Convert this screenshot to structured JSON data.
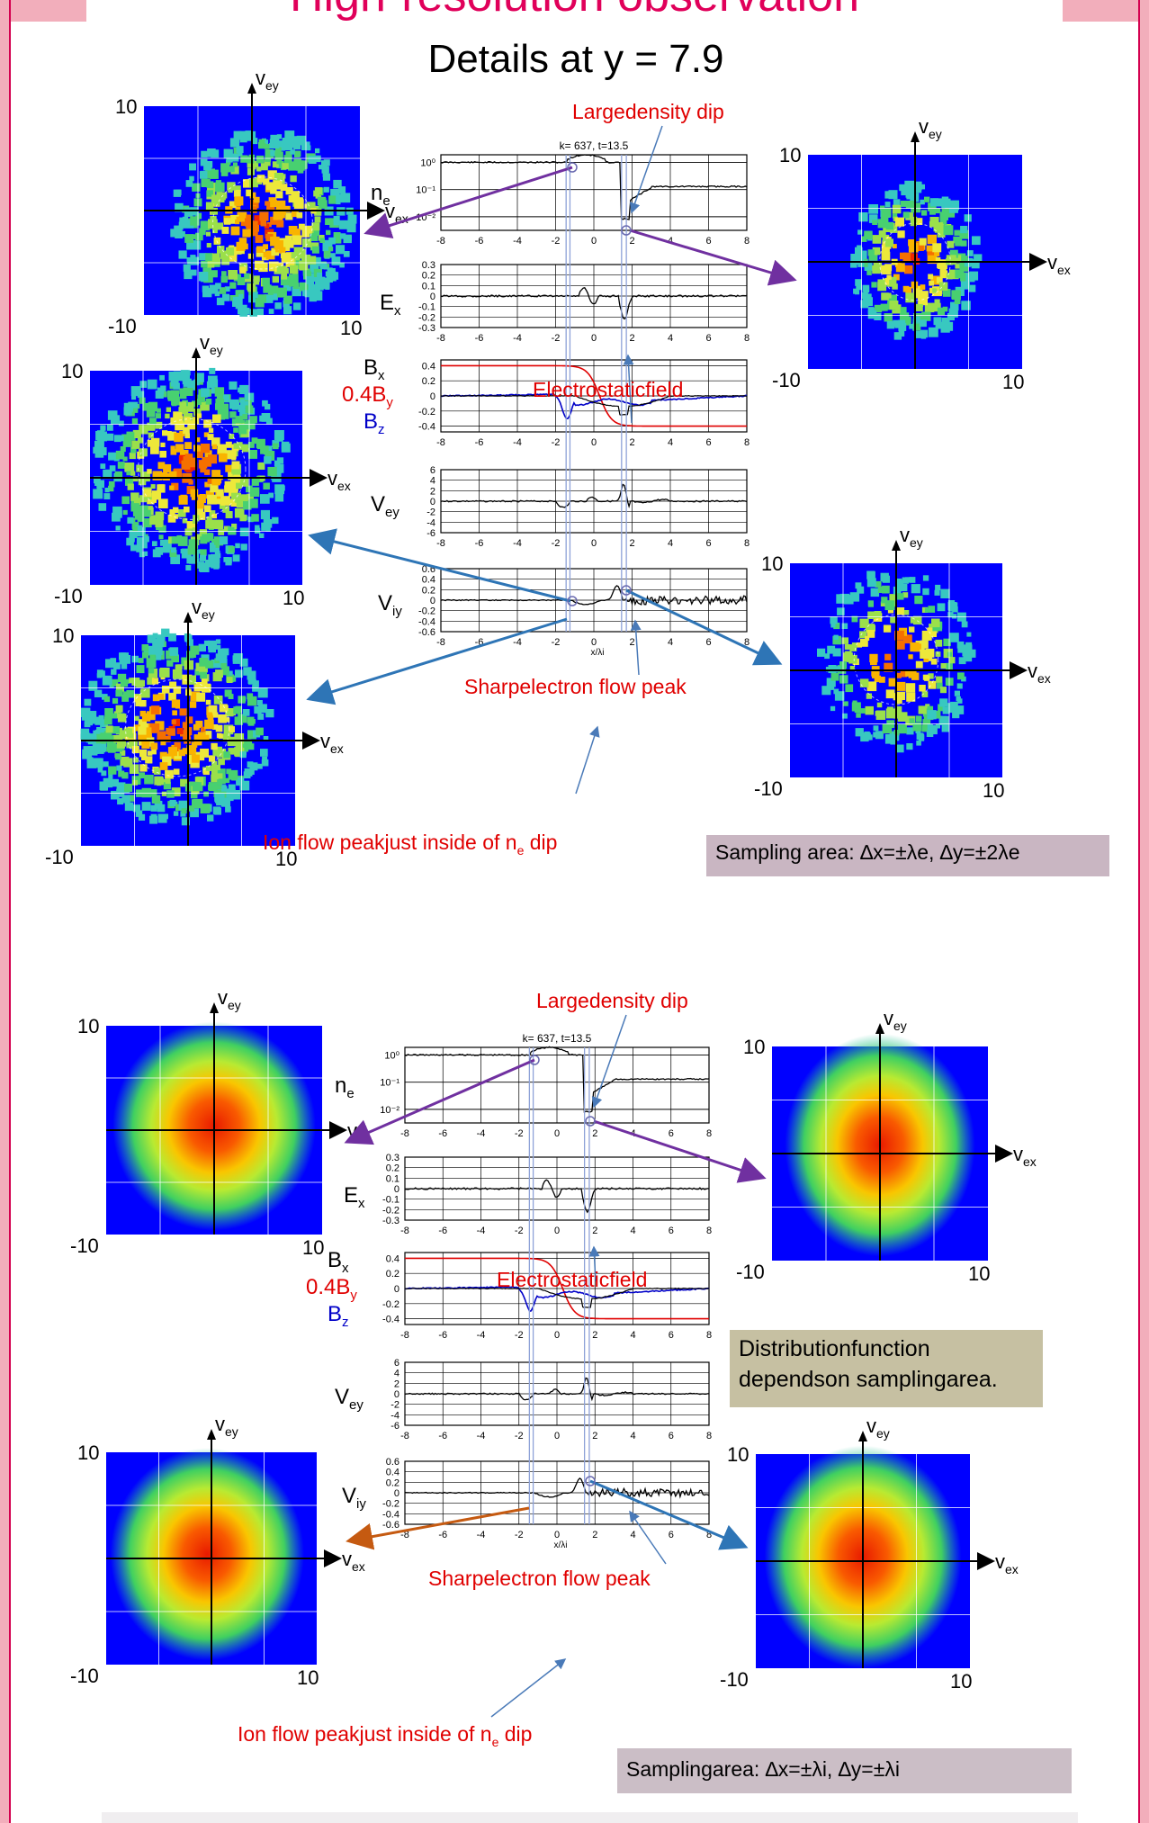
{
  "page": {
    "title": "High-resolution observation",
    "subtitle": "Details at y = 7.9"
  },
  "colors": {
    "frame": "#f2aebb",
    "title_red": "#e0005a",
    "annotation_red": "#e00000",
    "arrow_purple": "#7030a0",
    "arrow_blue": "#2e75b6",
    "arrow_orange": "#c55a11",
    "trace_bx": "#000000",
    "trace_by": "#e00000",
    "trace_bz": "#0000c8"
  },
  "plot_header": "k= 637, t=13.5",
  "annotations": {
    "density_dip": "Largedensity dip",
    "electrostatic": "Electrostaticfield",
    "electron_peak": "Sharpelectron flow peak",
    "ion_peak_pre": "Ion flow peakjust inside of n",
    "ion_peak_sub": "e",
    "ion_peak_post": " dip"
  },
  "notes": {
    "sampling_1": "Sampling area: ∆x=±λe, ∆y=±2λe",
    "distribution": "Distributionfunction dependson samplingarea.",
    "sampling_2": "Samplingarea: ∆x=±λi, ∆y=±λi"
  },
  "panel_labels": {
    "ne": "n",
    "ne_sub": "e",
    "ex": "E",
    "ex_sub": "x",
    "bx": "B",
    "bx_sub": "x",
    "by": "0.4B",
    "by_sub": "y",
    "bz": "B",
    "bz_sub": "z",
    "vey": "V",
    "vey_sub": "ey",
    "viy": "V",
    "viy_sub": "iy",
    "xaxis": "x/λi"
  },
  "phase_labels": {
    "vey": "v",
    "vey_sub": "ey",
    "vex": "v",
    "vex_sub": "ex",
    "top": "10",
    "bottom": "-10",
    "right": "10"
  },
  "chart_data": {
    "type": "line",
    "x_range": [
      -8,
      8
    ],
    "x_ticks": [
      "-8",
      "-6",
      "-4",
      "-2",
      "0",
      "2",
      "4",
      "6",
      "8"
    ],
    "panels": [
      {
        "name": "ne",
        "scale": "log",
        "y_ticks": [
          "10⁰",
          "10⁻¹",
          "10⁻²"
        ]
      },
      {
        "name": "Ex",
        "y_ticks": [
          "0.3",
          "0.2",
          "0.1",
          "0",
          "-0.1",
          "-0.2",
          "-0.3"
        ]
      },
      {
        "name": "B",
        "y_ticks": [
          "0.4",
          "0.2",
          "0",
          "-0.2",
          "-0.4"
        ]
      },
      {
        "name": "Vey",
        "y_ticks": [
          "6",
          "4",
          "2",
          "0",
          "-2",
          "-4",
          "-6"
        ]
      },
      {
        "name": "Viy",
        "y_ticks": [
          "0.6",
          "0.4",
          "0.2",
          "0",
          "-0.2",
          "-0.4",
          "-0.6"
        ]
      }
    ]
  }
}
